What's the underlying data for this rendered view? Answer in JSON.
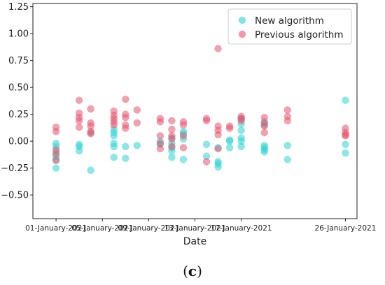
{
  "chart_data": {
    "type": "scatter",
    "xlabel": "Date",
    "ylabel": "",
    "title": "",
    "ylim": [
      -0.72,
      1.28
    ],
    "yticks": [
      -0.5,
      -0.25,
      0.0,
      0.25,
      0.5,
      0.75,
      1.0,
      1.25
    ],
    "ytick_labels": [
      "−0.50",
      "−0.25",
      "0.00",
      "0.25",
      "0.50",
      "0.75",
      "1.00",
      "1.25"
    ],
    "xlim": [
      "2020-12-30",
      "2021-01-27"
    ],
    "xticks": [
      "2021-01-01",
      "2021-01-05",
      "2021-01-09",
      "2021-01-13",
      "2021-01-17",
      "2021-01-26"
    ],
    "xtick_labels": [
      "01-January-2021",
      "05-January-2021",
      "09-January-2021",
      "13-January-2021",
      "17-January-2021",
      "26-January-2021"
    ],
    "grid": false,
    "legend_position": "top-right",
    "series": [
      {
        "name": "New algorithm",
        "color": "#2ed3d3",
        "points": [
          {
            "x": "2021-01-01",
            "y": -0.25
          },
          {
            "x": "2021-01-01",
            "y": -0.17
          },
          {
            "x": "2021-01-01",
            "y": -0.14
          },
          {
            "x": "2021-01-01",
            "y": -0.1
          },
          {
            "x": "2021-01-01",
            "y": -0.05
          },
          {
            "x": "2021-01-01",
            "y": -0.02
          },
          {
            "x": "2021-01-03",
            "y": -0.09
          },
          {
            "x": "2021-01-03",
            "y": -0.05
          },
          {
            "x": "2021-01-03",
            "y": -0.03
          },
          {
            "x": "2021-01-04",
            "y": -0.27
          },
          {
            "x": "2021-01-04",
            "y": 0.08
          },
          {
            "x": "2021-01-06",
            "y": -0.15
          },
          {
            "x": "2021-01-06",
            "y": -0.05
          },
          {
            "x": "2021-01-06",
            "y": -0.02
          },
          {
            "x": "2021-01-06",
            "y": 0.05
          },
          {
            "x": "2021-01-06",
            "y": 0.08
          },
          {
            "x": "2021-01-06",
            "y": 0.11
          },
          {
            "x": "2021-01-07",
            "y": -0.16
          },
          {
            "x": "2021-01-07",
            "y": -0.05
          },
          {
            "x": "2021-01-08",
            "y": -0.04
          },
          {
            "x": "2021-01-10",
            "y": -0.03
          },
          {
            "x": "2021-01-10",
            "y": 0.0
          },
          {
            "x": "2021-01-11",
            "y": -0.15
          },
          {
            "x": "2021-01-11",
            "y": -0.09
          },
          {
            "x": "2021-01-11",
            "y": -0.06
          },
          {
            "x": "2021-01-11",
            "y": -0.02
          },
          {
            "x": "2021-01-11",
            "y": 0.03
          },
          {
            "x": "2021-01-12",
            "y": -0.17
          },
          {
            "x": "2021-01-12",
            "y": 0.02
          },
          {
            "x": "2021-01-12",
            "y": 0.07
          },
          {
            "x": "2021-01-12",
            "y": 0.09
          },
          {
            "x": "2021-01-14",
            "y": -0.14
          },
          {
            "x": "2021-01-14",
            "y": -0.03
          },
          {
            "x": "2021-01-15",
            "y": -0.24
          },
          {
            "x": "2021-01-15",
            "y": -0.21
          },
          {
            "x": "2021-01-15",
            "y": -0.19
          },
          {
            "x": "2021-01-15",
            "y": -0.06
          },
          {
            "x": "2021-01-16",
            "y": -0.06
          },
          {
            "x": "2021-01-16",
            "y": 0.0
          },
          {
            "x": "2021-01-16",
            "y": 0.01
          },
          {
            "x": "2021-01-17",
            "y": -0.05
          },
          {
            "x": "2021-01-17",
            "y": 0.0
          },
          {
            "x": "2021-01-17",
            "y": 0.03
          },
          {
            "x": "2021-01-17",
            "y": 0.1
          },
          {
            "x": "2021-01-17",
            "y": 0.16
          },
          {
            "x": "2021-01-17",
            "y": 0.21
          },
          {
            "x": "2021-01-19",
            "y": -0.1
          },
          {
            "x": "2021-01-19",
            "y": -0.08
          },
          {
            "x": "2021-01-19",
            "y": -0.06
          },
          {
            "x": "2021-01-19",
            "y": -0.04
          },
          {
            "x": "2021-01-19",
            "y": 0.15
          },
          {
            "x": "2021-01-19",
            "y": 0.18
          },
          {
            "x": "2021-01-21",
            "y": -0.17
          },
          {
            "x": "2021-01-21",
            "y": -0.04
          },
          {
            "x": "2021-01-26",
            "y": -0.11
          },
          {
            "x": "2021-01-26",
            "y": -0.03
          },
          {
            "x": "2021-01-26",
            "y": 0.38
          }
        ]
      },
      {
        "name": "Previous algorithm",
        "color": "#e8536e",
        "points": [
          {
            "x": "2021-01-01",
            "y": 0.13
          },
          {
            "x": "2021-01-01",
            "y": 0.09
          },
          {
            "x": "2021-01-01",
            "y": -0.08
          },
          {
            "x": "2021-01-01",
            "y": -0.12
          },
          {
            "x": "2021-01-01",
            "y": -0.18
          },
          {
            "x": "2021-01-03",
            "y": 0.38
          },
          {
            "x": "2021-01-03",
            "y": 0.26
          },
          {
            "x": "2021-01-03",
            "y": 0.22
          },
          {
            "x": "2021-01-03",
            "y": 0.19
          },
          {
            "x": "2021-01-03",
            "y": 0.13
          },
          {
            "x": "2021-01-04",
            "y": 0.3
          },
          {
            "x": "2021-01-04",
            "y": 0.17
          },
          {
            "x": "2021-01-04",
            "y": 0.14
          },
          {
            "x": "2021-01-04",
            "y": 0.09
          },
          {
            "x": "2021-01-04",
            "y": 0.07
          },
          {
            "x": "2021-01-06",
            "y": 0.28
          },
          {
            "x": "2021-01-06",
            "y": 0.24
          },
          {
            "x": "2021-01-06",
            "y": 0.21
          },
          {
            "x": "2021-01-06",
            "y": 0.18
          },
          {
            "x": "2021-01-06",
            "y": 0.15
          },
          {
            "x": "2021-01-07",
            "y": 0.39
          },
          {
            "x": "2021-01-07",
            "y": 0.25
          },
          {
            "x": "2021-01-07",
            "y": 0.22
          },
          {
            "x": "2021-01-07",
            "y": 0.15
          },
          {
            "x": "2021-01-07",
            "y": 0.12
          },
          {
            "x": "2021-01-08",
            "y": 0.29
          },
          {
            "x": "2021-01-08",
            "y": 0.17
          },
          {
            "x": "2021-01-10",
            "y": 0.21
          },
          {
            "x": "2021-01-10",
            "y": 0.18
          },
          {
            "x": "2021-01-10",
            "y": 0.05
          },
          {
            "x": "2021-01-10",
            "y": -0.02
          },
          {
            "x": "2021-01-10",
            "y": -0.07
          },
          {
            "x": "2021-01-11",
            "y": 0.19
          },
          {
            "x": "2021-01-11",
            "y": 0.11
          },
          {
            "x": "2021-01-11",
            "y": 0.05
          },
          {
            "x": "2021-01-11",
            "y": 0.02
          },
          {
            "x": "2021-01-11",
            "y": -0.05
          },
          {
            "x": "2021-01-12",
            "y": 0.18
          },
          {
            "x": "2021-01-12",
            "y": 0.15
          },
          {
            "x": "2021-01-12",
            "y": 0.05
          },
          {
            "x": "2021-01-12",
            "y": -0.06
          },
          {
            "x": "2021-01-14",
            "y": 0.21
          },
          {
            "x": "2021-01-14",
            "y": 0.19
          },
          {
            "x": "2021-01-14",
            "y": -0.19
          },
          {
            "x": "2021-01-15",
            "y": 0.86
          },
          {
            "x": "2021-01-15",
            "y": 0.14
          },
          {
            "x": "2021-01-15",
            "y": 0.1
          },
          {
            "x": "2021-01-15",
            "y": 0.06
          },
          {
            "x": "2021-01-15",
            "y": -0.07
          },
          {
            "x": "2021-01-16",
            "y": 0.14
          },
          {
            "x": "2021-01-16",
            "y": 0.12
          },
          {
            "x": "2021-01-17",
            "y": 0.23
          },
          {
            "x": "2021-01-17",
            "y": 0.21
          },
          {
            "x": "2021-01-17",
            "y": 0.19
          },
          {
            "x": "2021-01-19",
            "y": 0.22
          },
          {
            "x": "2021-01-19",
            "y": 0.17
          },
          {
            "x": "2021-01-19",
            "y": 0.14
          },
          {
            "x": "2021-01-19",
            "y": 0.08
          },
          {
            "x": "2021-01-21",
            "y": 0.29
          },
          {
            "x": "2021-01-21",
            "y": 0.23
          },
          {
            "x": "2021-01-21",
            "y": 0.19
          },
          {
            "x": "2021-01-26",
            "y": 0.12
          },
          {
            "x": "2021-01-26",
            "y": 0.08
          },
          {
            "x": "2021-01-26",
            "y": 0.06
          },
          {
            "x": "2021-01-26",
            "y": 0.05
          }
        ]
      }
    ]
  },
  "caption": {
    "open": "(",
    "letter": "c",
    "close": ")"
  }
}
